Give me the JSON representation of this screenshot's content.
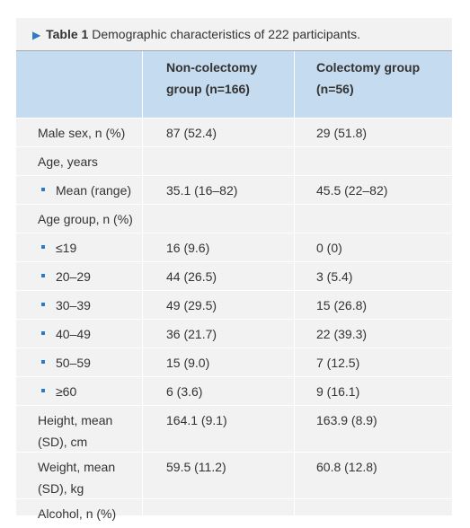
{
  "table": {
    "caption_label": "Table 1",
    "caption_text": "Demographic characteristics of 222 participants.",
    "headers": [
      "",
      "Non-colectomy\ngroup (n=166)",
      "Colectomy group\n(n=56)"
    ],
    "rows": [
      {
        "label": "Male sex, n (%)",
        "non": "87 (52.4)",
        "col": "29 (51.8)",
        "sub": false,
        "tall": false
      },
      {
        "label": "Age, years",
        "non": "",
        "col": "",
        "sub": false,
        "tall": false
      },
      {
        "label": "Mean (range)",
        "non": "35.1 (16–82)",
        "col": "45.5 (22–82)",
        "sub": true,
        "tall": false
      },
      {
        "label": "Age group, n (%)",
        "non": "",
        "col": "",
        "sub": false,
        "tall": false
      },
      {
        "label": "≤19",
        "non": "16 (9.6)",
        "col": "0 (0)",
        "sub": true,
        "tall": false
      },
      {
        "label": "20–29",
        "non": "44 (26.5)",
        "col": "3 (5.4)",
        "sub": true,
        "tall": false
      },
      {
        "label": "30–39",
        "non": "49 (29.5)",
        "col": "15 (26.8)",
        "sub": true,
        "tall": false
      },
      {
        "label": "40–49",
        "non": "36 (21.7)",
        "col": "22 (39.3)",
        "sub": true,
        "tall": false
      },
      {
        "label": "50–59",
        "non": "15 (9.0)",
        "col": "7 (12.5)",
        "sub": true,
        "tall": false
      },
      {
        "label": "≥60",
        "non": "6 (3.6)",
        "col": "9 (16.1)",
        "sub": true,
        "tall": false
      },
      {
        "label": "Height, mean\n(SD), cm",
        "non": "164.1 (9.1)",
        "col": "163.9 (8.9)",
        "sub": false,
        "tall": true
      },
      {
        "label": "Weight, mean\n(SD), kg",
        "non": "59.5 (11.2)",
        "col": "60.8 (12.8)",
        "sub": false,
        "tall": true
      },
      {
        "label": "Alcohol, n (%)",
        "non": "",
        "col": "",
        "sub": false,
        "tall": false
      }
    ]
  }
}
